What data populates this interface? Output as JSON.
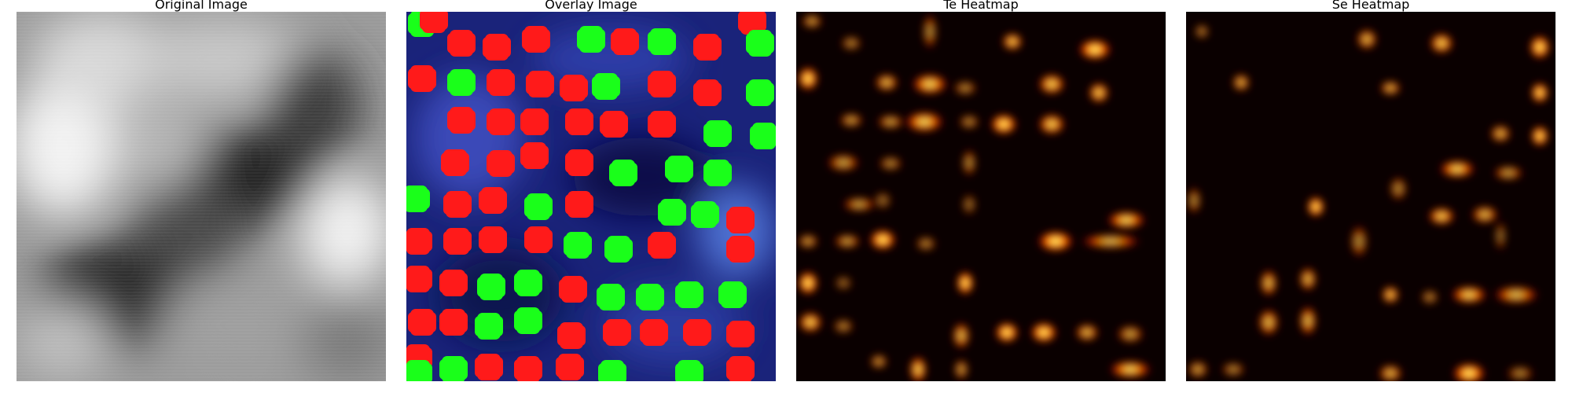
{
  "figure": {
    "panels": [
      {
        "title": "Original Image"
      },
      {
        "title": "Overlay Image"
      },
      {
        "title": "Te Heatmap"
      },
      {
        "title": "Se Heatmap"
      }
    ]
  },
  "colors": {
    "red_marker": "#ff1a1a",
    "green_marker": "#1aff1a",
    "overlay_background": "#1a237a",
    "heatmap_background": "#0a0000"
  }
}
